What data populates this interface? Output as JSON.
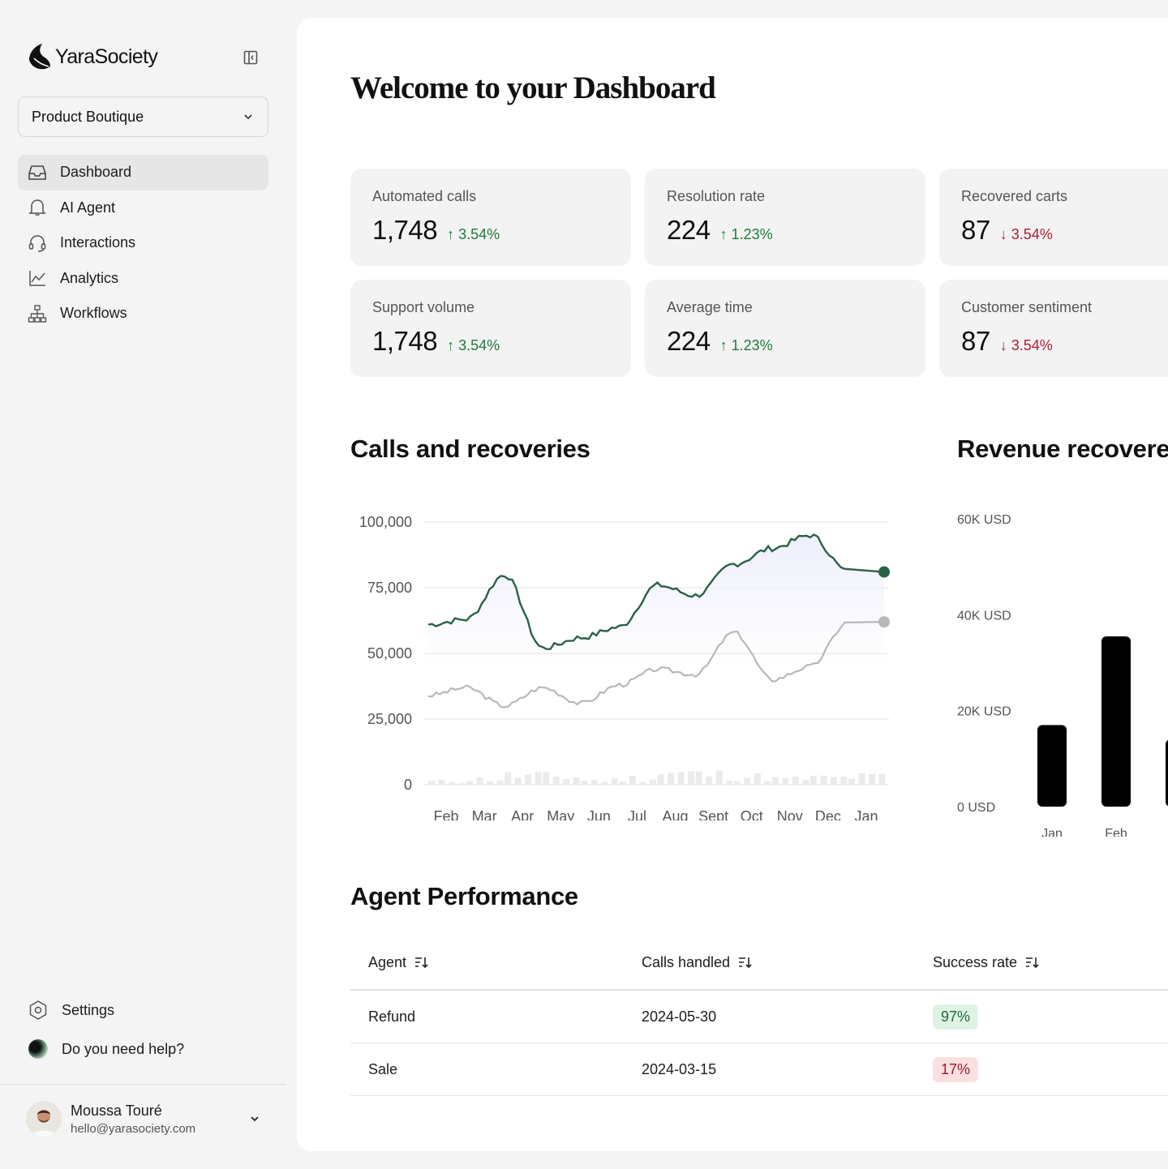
{
  "brand": {
    "name": "YaraSociety"
  },
  "workspace": {
    "selected": "Product Boutique"
  },
  "nav": {
    "items": [
      {
        "label": "Dashboard",
        "icon": "inbox-icon",
        "active": true
      },
      {
        "label": "AI Agent",
        "icon": "bell-icon"
      },
      {
        "label": "Interactions",
        "icon": "headset-icon"
      },
      {
        "label": "Analytics",
        "icon": "line-chart-icon"
      },
      {
        "label": "Workflows",
        "icon": "hierarchy-icon"
      }
    ]
  },
  "bottom": {
    "settings": "Settings",
    "help": "Do you need help?"
  },
  "user": {
    "name": "Moussa Touré",
    "email": "hello@yarasociety.com"
  },
  "page": {
    "title": "Welcome to your Dashboard"
  },
  "stats": [
    {
      "label": "Automated calls",
      "value": "1,748",
      "delta": "3.54%",
      "direction": "up"
    },
    {
      "label": "Resolution rate",
      "value": "224",
      "delta": "1.23%",
      "direction": "up"
    },
    {
      "label": "Recovered carts",
      "value": "87",
      "delta": "3.54%",
      "direction": "down"
    },
    {
      "label": "Support volume",
      "value": "1,748",
      "delta": "3.54%",
      "direction": "up"
    },
    {
      "label": "Average time",
      "value": "224",
      "delta": "1.23%",
      "direction": "up"
    },
    {
      "label": "Customer sentiment",
      "value": "87",
      "delta": "3.54%",
      "direction": "down"
    }
  ],
  "colors": {
    "up": "#1f7a3c",
    "down": "#b01d32",
    "primary_line": "#2b6147",
    "secondary_line": "#b8b8b8",
    "area": "#efeffc"
  },
  "chart_data": [
    {
      "type": "line",
      "title": "Calls and recoveries",
      "x": [
        "Feb",
        "Mar",
        "Apr",
        "May",
        "Jun",
        "Jul",
        "Aug",
        "Sept",
        "Oct",
        "Nov",
        "Dec",
        "Jan"
      ],
      "ylim": [
        0,
        100000
      ],
      "yticks": [
        "100,000",
        "75,000",
        "50,000",
        "25,000",
        "0"
      ],
      "grid": true,
      "series": [
        {
          "values": [
            61000,
            63000,
            80000,
            52000,
            56000,
            60000,
            76000,
            72000,
            84000,
            90000,
            95000,
            81000
          ],
          "color": "#2b6147",
          "fill": true
        },
        {
          "values": [
            34000,
            37000,
            30000,
            37000,
            31000,
            38000,
            44000,
            42000,
            58000,
            40000,
            45000,
            62000
          ],
          "color": "#b8b8b8"
        },
        {
          "values": [
            1500,
            2500,
            4000,
            3500,
            2000,
            3000,
            5000,
            4500,
            3500,
            2500,
            3000,
            3500
          ],
          "type": "bar",
          "color": "#ebebeb"
        }
      ]
    },
    {
      "type": "bar",
      "title": "Revenue recovered",
      "categories": [
        "Jan",
        "Feb"
      ],
      "values": [
        17000,
        35500
      ],
      "ylim": [
        0,
        60000
      ],
      "yticks": [
        "60K USD",
        "40K USD",
        "20K USD",
        "0 USD"
      ],
      "color": "#000000"
    }
  ],
  "table": {
    "title": "Agent Performance",
    "columns": [
      "Agent",
      "Calls handled",
      "Success rate"
    ],
    "rows": [
      {
        "agent": "Refund",
        "date": "2024-05-30",
        "rate": "97%",
        "tone": "good"
      },
      {
        "agent": "Sale",
        "date": "2024-03-15",
        "rate": "17%",
        "tone": "bad"
      }
    ]
  }
}
